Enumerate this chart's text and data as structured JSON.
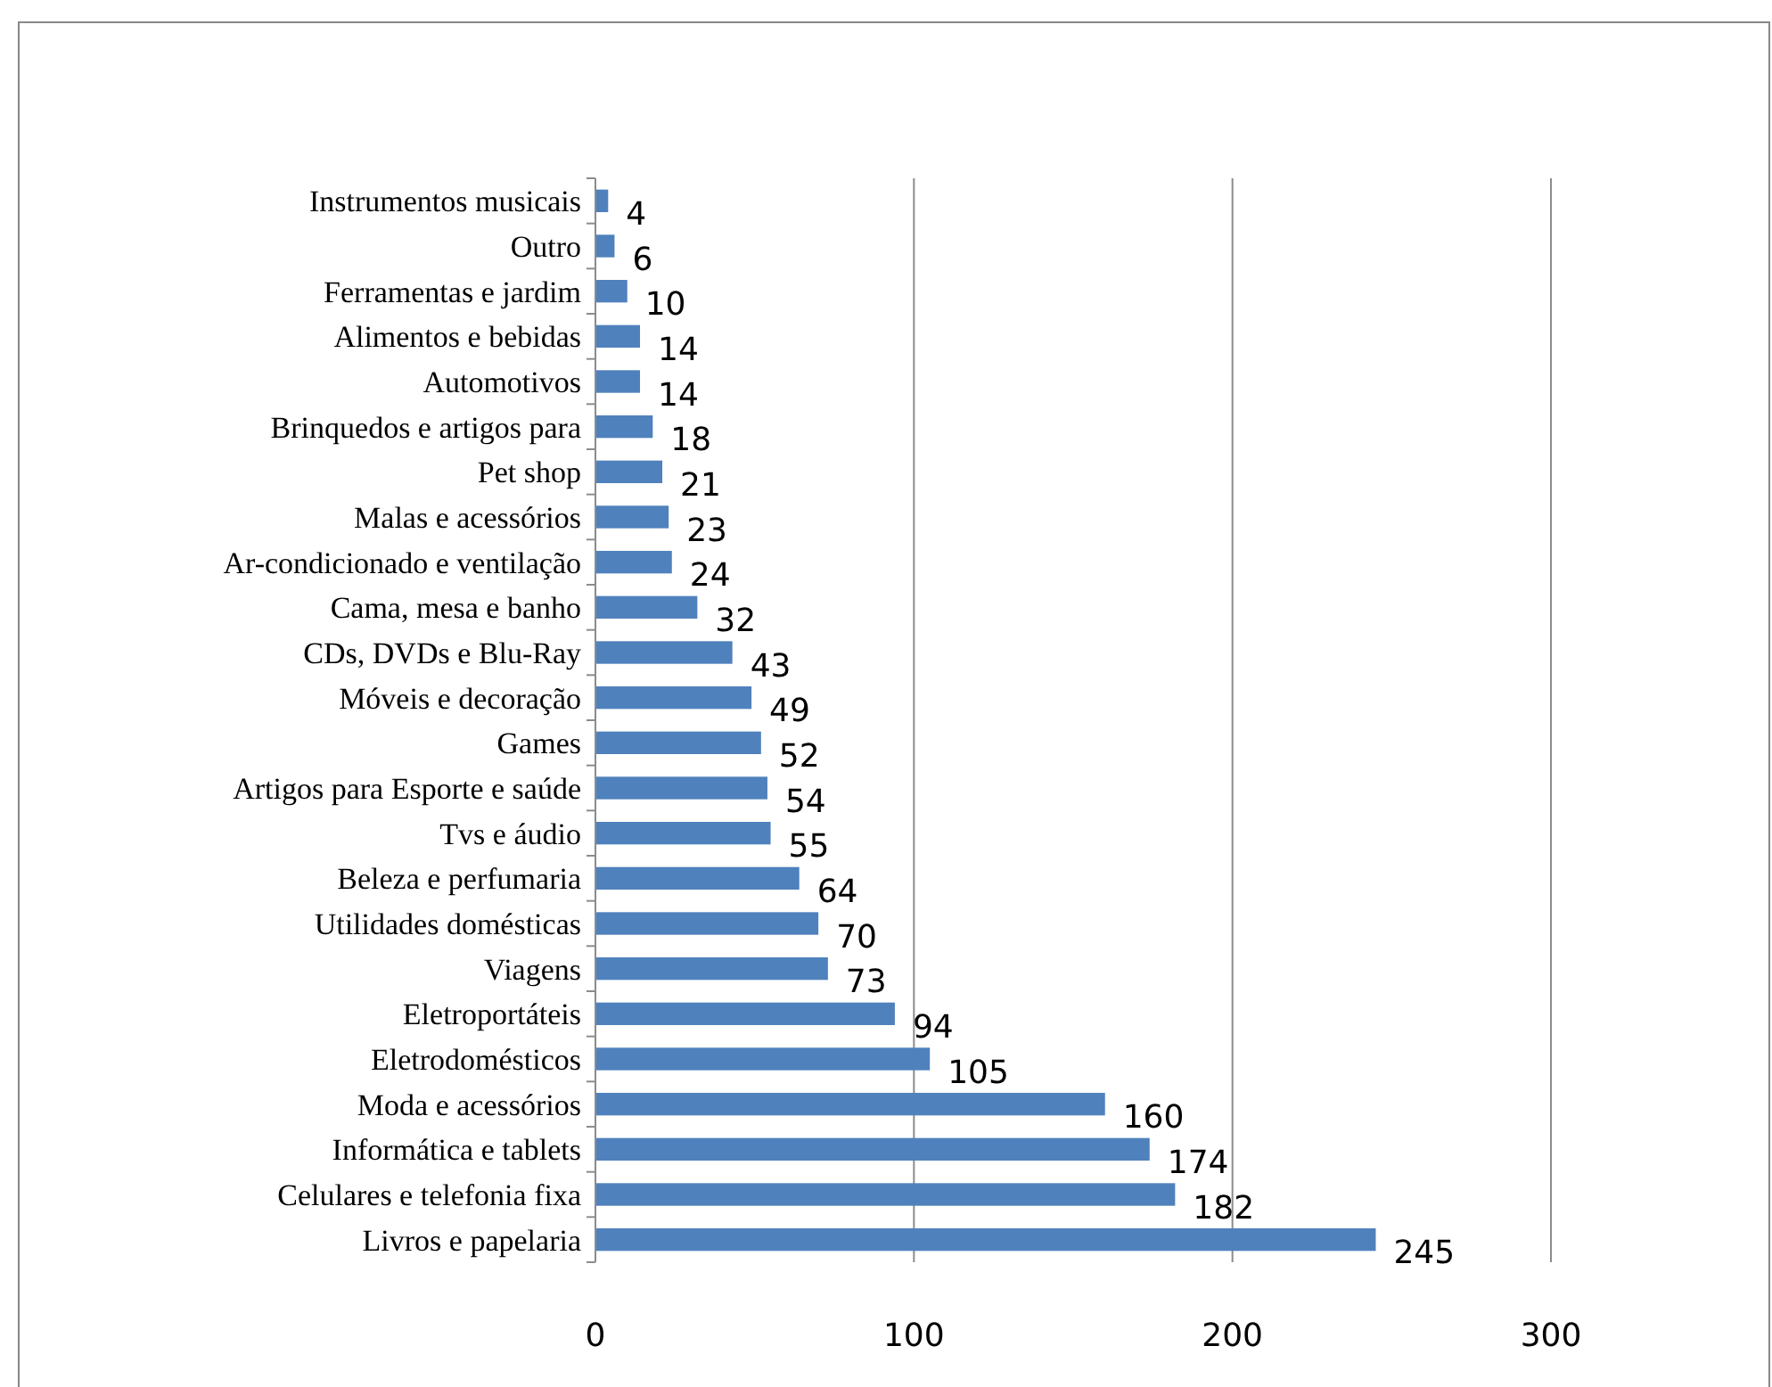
{
  "chart_data": {
    "type": "bar",
    "orientation": "horizontal",
    "categories": [
      "Instrumentos musicais",
      "Outro",
      "Ferramentas e jardim",
      "Alimentos e bebidas",
      "Automotivos",
      "Brinquedos e artigos para",
      "Pet shop",
      "Malas e acessórios",
      "Ar-condicionado e ventilação",
      "Cama, mesa e banho",
      "CDs, DVDs e Blu-Ray",
      "Móveis e decoração",
      "Games",
      "Artigos para Esporte e saúde",
      "Tvs e áudio",
      "Beleza e perfumaria",
      "Utilidades domésticas",
      "Viagens",
      "Eletroportáteis",
      "Eletrodomésticos",
      "Moda e acessórios",
      "Informática e tablets",
      "Celulares e telefonia fixa",
      "Livros e papelaria"
    ],
    "values": [
      4,
      6,
      10,
      14,
      14,
      18,
      21,
      23,
      24,
      32,
      43,
      49,
      52,
      54,
      55,
      64,
      70,
      73,
      94,
      105,
      160,
      174,
      182,
      245
    ],
    "color": "#4f81bd",
    "xlim": [
      0,
      300
    ],
    "xticks": [
      0,
      100,
      200,
      300
    ],
    "grid": "x",
    "data_labels": true
  }
}
